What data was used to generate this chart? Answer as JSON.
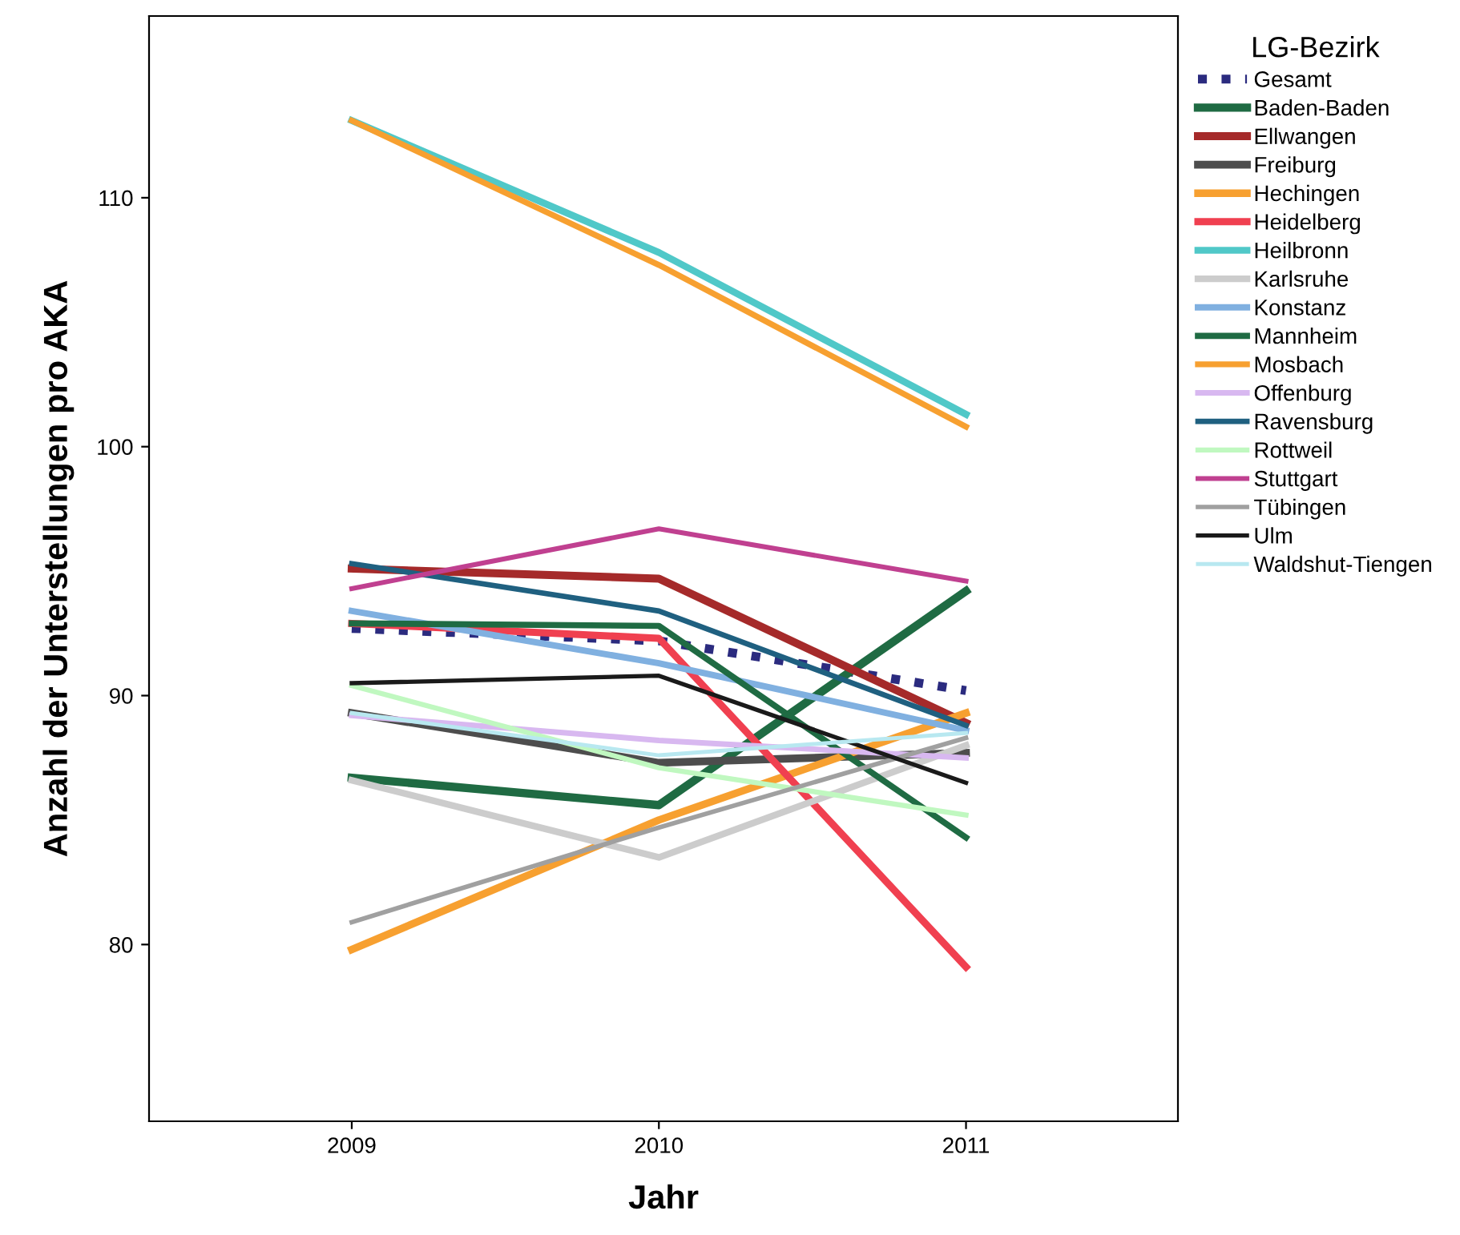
{
  "chart_data": {
    "type": "line",
    "xlabel": "Jahr",
    "ylabel": "Anzahl der Unterstellungen pro AKA",
    "legend_title": "LG-Bezirk",
    "legend": "right",
    "grid": false,
    "marker": "none",
    "x": [
      2009,
      2010,
      2011
    ],
    "xlim": [
      2008.34,
      2011.69
    ],
    "xticks": [
      2009,
      2010,
      2011
    ],
    "ylim": [
      72.9,
      117.3
    ],
    "yticks": [
      80,
      90,
      100,
      110
    ],
    "series": [
      {
        "name": "Gesamt",
        "color": "#2b2b7f",
        "line_style": "dotted",
        "values": [
          92.7,
          92.2,
          90.2
        ]
      },
      {
        "name": "Baden-Baden",
        "color": "#1f6b43",
        "values": [
          86.7,
          85.6,
          94.2
        ]
      },
      {
        "name": "Ellwangen",
        "color": "#a52a2a",
        "values": [
          95.1,
          94.7,
          88.9
        ]
      },
      {
        "name": "Freiburg",
        "color": "#4d4d4d",
        "values": [
          89.3,
          87.3,
          87.7
        ]
      },
      {
        "name": "Hechingen",
        "color": "#f7a030",
        "values": [
          79.8,
          85.0,
          89.3
        ]
      },
      {
        "name": "Heidelberg",
        "color": "#f04050",
        "values": [
          92.9,
          92.3,
          79.1
        ]
      },
      {
        "name": "Heilbronn",
        "color": "#50c8c8",
        "values": [
          113.1,
          107.8,
          101.3
        ]
      },
      {
        "name": "Karlsruhe",
        "color": "#cccccc",
        "values": [
          86.6,
          83.5,
          88.0
        ]
      },
      {
        "name": "Konstanz",
        "color": "#80b0e0",
        "values": [
          93.4,
          91.3,
          88.6
        ]
      },
      {
        "name": "Mannheim",
        "color": "#1f6b43",
        "values": [
          92.9,
          92.8,
          84.3
        ]
      },
      {
        "name": "Mosbach",
        "color": "#f7a030",
        "values": [
          113.1,
          107.3,
          100.8
        ]
      },
      {
        "name": "Offenburg",
        "color": "#d8b8f0",
        "values": [
          89.2,
          88.2,
          87.5
        ]
      },
      {
        "name": "Ravensburg",
        "color": "#1f6080",
        "values": [
          95.3,
          93.4,
          88.8
        ]
      },
      {
        "name": "Rottweil",
        "color": "#c0f8c0",
        "values": [
          90.4,
          87.1,
          85.2
        ]
      },
      {
        "name": "Stuttgart",
        "color": "#c04090",
        "values": [
          94.3,
          96.7,
          94.6
        ]
      },
      {
        "name": "Tübingen",
        "color": "#a0a0a0",
        "values": [
          80.9,
          84.7,
          88.3
        ]
      },
      {
        "name": "Ulm",
        "color": "#1a1a1a",
        "values": [
          90.5,
          90.8,
          86.5
        ]
      },
      {
        "name": "Waldshut-Tiengen",
        "color": "#b8e8f0",
        "values": [
          89.3,
          87.6,
          88.5
        ]
      }
    ]
  }
}
